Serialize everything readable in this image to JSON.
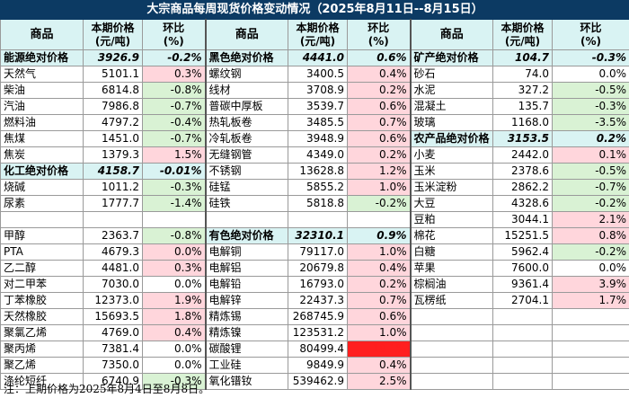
{
  "title": "大宗商品每周现货价格变动情况（2025年8月11日--8月15日）",
  "headers": {
    "name": "商品",
    "price": "本期价格\n(元/吨)",
    "change": "环比\n(%)"
  },
  "columns": [
    {
      "rows": [
        {
          "name": "能源绝对价格",
          "price": "3926.9",
          "change": "-0.2%",
          "type": "cat"
        },
        {
          "name": "天然气",
          "price": "5101.1",
          "change": "0.3%",
          "type": "pos"
        },
        {
          "name": "柴油",
          "price": "6814.8",
          "change": "-0.8%",
          "type": "neg"
        },
        {
          "name": "汽油",
          "price": "7986.8",
          "change": "-0.7%",
          "type": "neg"
        },
        {
          "name": "燃料油",
          "price": "4797.2",
          "change": "-0.4%",
          "type": "neg"
        },
        {
          "name": "焦煤",
          "price": "1451.0",
          "change": "-0.7%",
          "type": "neg"
        },
        {
          "name": "焦炭",
          "price": "1379.3",
          "change": "1.5%",
          "type": "pos"
        },
        {
          "name": "化工绝对价格",
          "price": "4158.7",
          "change": "-0.01%",
          "type": "cat"
        },
        {
          "name": "烧碱",
          "price": "1011.2",
          "change": "-0.3%",
          "type": "neg"
        },
        {
          "name": "尿素",
          "price": "1777.7",
          "change": "-1.4%",
          "type": "neg"
        },
        {
          "name": "",
          "price": "",
          "change": "",
          "type": "blank"
        },
        {
          "name": "甲醇",
          "price": "2363.7",
          "change": "-0.8%",
          "type": "neg"
        },
        {
          "name": "PTA",
          "price": "4679.3",
          "change": "0.0%",
          "type": "pos"
        },
        {
          "name": "乙二醇",
          "price": "4481.0",
          "change": "0.3%",
          "type": "pos"
        },
        {
          "name": "对二甲苯",
          "price": "7030.0",
          "change": "0.0%",
          "type": "plain"
        },
        {
          "name": "丁苯橡胶",
          "price": "12373.0",
          "change": "1.9%",
          "type": "pos"
        },
        {
          "name": "天然橡胶",
          "price": "15693.5",
          "change": "1.8%",
          "type": "pos"
        },
        {
          "name": "聚氯乙烯",
          "price": "4769.0",
          "change": "0.4%",
          "type": "pos"
        },
        {
          "name": "聚丙烯",
          "price": "7381.4",
          "change": "0.0%",
          "type": "plain"
        },
        {
          "name": "聚乙烯",
          "price": "7350.0",
          "change": "0.0%",
          "type": "plain"
        },
        {
          "name": "涤纶短纤",
          "price": "6740.9",
          "change": "-0.3%",
          "type": "neg"
        }
      ]
    },
    {
      "rows": [
        {
          "name": "黑色绝对价格",
          "price": "4441.0",
          "change": "0.6%",
          "type": "cat"
        },
        {
          "name": "螺纹钢",
          "price": "3400.5",
          "change": "0.4%",
          "type": "pos"
        },
        {
          "name": "线材",
          "price": "3708.9",
          "change": "0.2%",
          "type": "pos"
        },
        {
          "name": "普碳中厚板",
          "price": "3539.7",
          "change": "0.6%",
          "type": "pos"
        },
        {
          "name": "热轧板卷",
          "price": "3485.5",
          "change": "0.7%",
          "type": "pos"
        },
        {
          "name": "冷轧板卷",
          "price": "3948.9",
          "change": "0.6%",
          "type": "pos"
        },
        {
          "name": "无缝钢管",
          "price": "4349.0",
          "change": "0.2%",
          "type": "pos"
        },
        {
          "name": "不锈钢",
          "price": "13628.8",
          "change": "1.2%",
          "type": "pos"
        },
        {
          "name": "硅锰",
          "price": "5855.2",
          "change": "1.0%",
          "type": "pos"
        },
        {
          "name": "硅铁",
          "price": "5818.8",
          "change": "-0.2%",
          "type": "neg"
        },
        {
          "name": "",
          "price": "",
          "change": "",
          "type": "blank"
        },
        {
          "name": "有色绝对价格",
          "price": "32310.1",
          "change": "0.9%",
          "type": "cat"
        },
        {
          "name": "电解铜",
          "price": "79117.0",
          "change": "1.0%",
          "type": "pos"
        },
        {
          "name": "电解铝",
          "price": "20679.8",
          "change": "0.4%",
          "type": "pos"
        },
        {
          "name": "电解铅",
          "price": "16793.0",
          "change": "0.2%",
          "type": "pos"
        },
        {
          "name": "电解锌",
          "price": "22437.3",
          "change": "0.7%",
          "type": "pos"
        },
        {
          "name": "精炼锡",
          "price": "268745.9",
          "change": "0.6%",
          "type": "pos"
        },
        {
          "name": "精炼镍",
          "price": "123531.2",
          "change": "1.0%",
          "type": "pos"
        },
        {
          "name": "碳酸锂",
          "price": "80499.4",
          "change": "18.1%",
          "type": "hot"
        },
        {
          "name": "工业硅",
          "price": "9849.9",
          "change": "0.4%",
          "type": "pos"
        },
        {
          "name": "氧化镨钕",
          "price": "539462.9",
          "change": "2.5%",
          "type": "pos"
        }
      ]
    },
    {
      "rows": [
        {
          "name": "矿产绝对价格",
          "price": "104.7",
          "change": "-0.3%",
          "type": "cat"
        },
        {
          "name": "砂石",
          "price": "74.0",
          "change": "0.0%",
          "type": "plain"
        },
        {
          "name": "水泥",
          "price": "327.2",
          "change": "-0.5%",
          "type": "neg"
        },
        {
          "name": "混凝土",
          "price": "135.7",
          "change": "-0.3%",
          "type": "neg"
        },
        {
          "name": "玻璃",
          "price": "1168.0",
          "change": "-3.5%",
          "type": "neg"
        },
        {
          "name": "农产品绝对价格",
          "price": "3153.5",
          "change": "0.2%",
          "type": "cat"
        },
        {
          "name": "小麦",
          "price": "2442.0",
          "change": "0.1%",
          "type": "pos"
        },
        {
          "name": "玉米",
          "price": "2378.6",
          "change": "-0.5%",
          "type": "neg"
        },
        {
          "name": "玉米淀粉",
          "price": "2862.2",
          "change": "-0.7%",
          "type": "neg"
        },
        {
          "name": "大豆",
          "price": "4328.6",
          "change": "-0.2%",
          "type": "neg"
        },
        {
          "name": "豆粕",
          "price": "3044.1",
          "change": "2.1%",
          "type": "pos"
        },
        {
          "name": "棉花",
          "price": "15251.5",
          "change": "0.8%",
          "type": "pos"
        },
        {
          "name": "白糖",
          "price": "5962.4",
          "change": "-0.2%",
          "type": "neg"
        },
        {
          "name": "苹果",
          "price": "7600.0",
          "change": "0.0%",
          "type": "plain"
        },
        {
          "name": "棕榈油",
          "price": "9361.4",
          "change": "3.9%",
          "type": "pos"
        },
        {
          "name": "瓦楞纸",
          "price": "2704.1",
          "change": "1.7%",
          "type": "pos"
        },
        {
          "name": "",
          "price": "",
          "change": "",
          "type": "blank"
        },
        {
          "name": "",
          "price": "",
          "change": "",
          "type": "blank"
        },
        {
          "name": "",
          "price": "",
          "change": "",
          "type": "blank"
        },
        {
          "name": "",
          "price": "",
          "change": "",
          "type": "blank"
        },
        {
          "name": "",
          "price": "",
          "change": "",
          "type": "blank"
        }
      ]
    }
  ],
  "note": "注：上期价格为2025年8月4日至8月8日。",
  "colors": {
    "title_bg": "#0c3a63",
    "header_bg": "#d9f3f3",
    "pos": "#ffd6dc",
    "neg": "#d9f2d4",
    "hot": "#ff1f1f"
  }
}
